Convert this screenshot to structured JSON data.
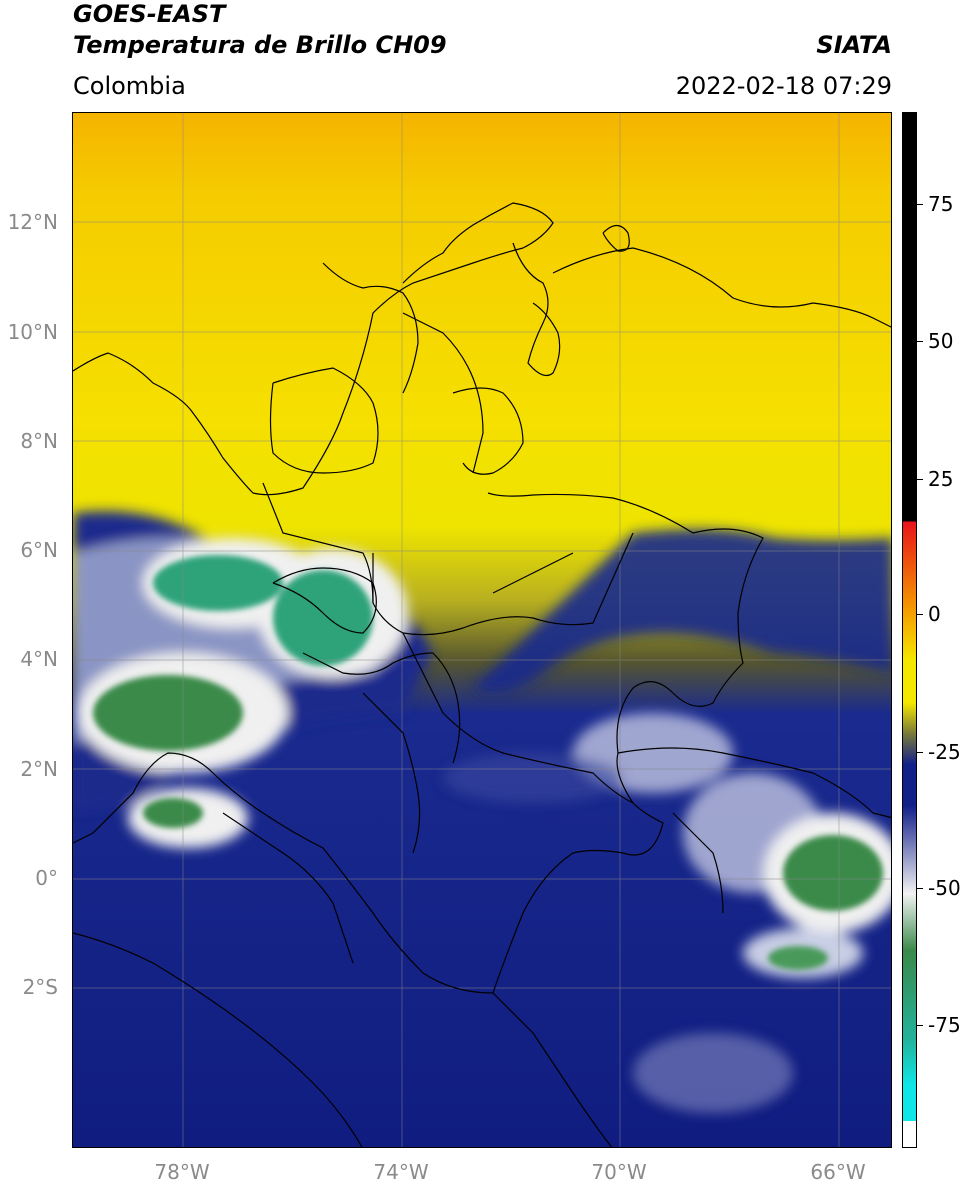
{
  "header": {
    "satellite": "GOES-EAST",
    "product": "Temperatura de Brillo CH09",
    "region": "Colombia",
    "agency": "SIATA",
    "datetime": "2022-02-18 07:29"
  },
  "map": {
    "lat_ticks": [
      "12°N",
      "10°N",
      "8°N",
      "6°N",
      "4°N",
      "2°N",
      "0°",
      "2°S"
    ],
    "lon_ticks": [
      "78°W",
      "74°W",
      "70°W",
      "66°W"
    ],
    "lat_range": [
      -4.9,
      14.0
    ],
    "lon_range": [
      -80.0,
      -65.0
    ]
  },
  "colorbar": {
    "ticks": [
      "75",
      "50",
      "25",
      "0",
      "-25",
      "-50",
      "-75"
    ],
    "range": [
      -100,
      90
    ],
    "colors": {
      "black": "#000000",
      "red": "#e8141a",
      "orange": "#f59a00",
      "yellow": "#f5e800",
      "olive": "#7a7a3a",
      "navy": "#12208a",
      "white": "#f2f2f2",
      "green": "#3a8a4a",
      "teal": "#22b29a",
      "cyan": "#10e6e6"
    }
  }
}
